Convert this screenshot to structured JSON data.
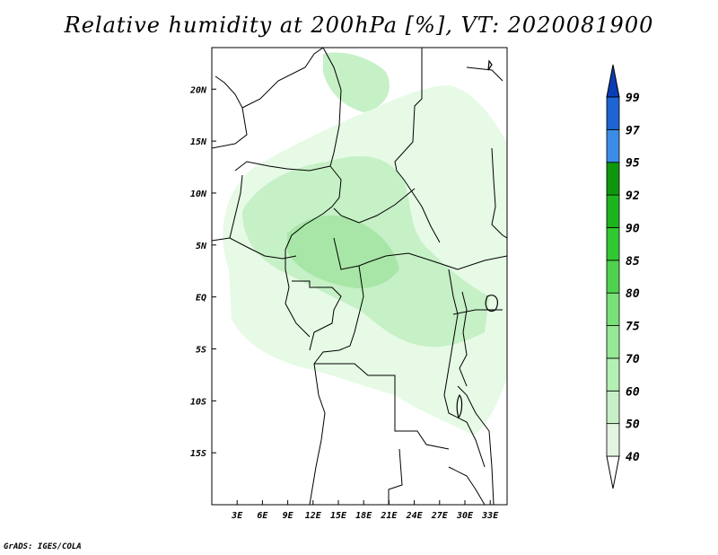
{
  "title": "Relative humidity at 200hPa [%], VT: 2020081900",
  "credit": "GrADS: IGES/COLA",
  "map": {
    "variable": "Relative humidity",
    "level": "200hPa",
    "units": "%",
    "valid_time": "2020081900",
    "lon_range": [
      0,
      35
    ],
    "lat_range": [
      -20,
      24
    ],
    "lon_ticks": [
      {
        "value": 3,
        "label": "3E"
      },
      {
        "value": 6,
        "label": "6E"
      },
      {
        "value": 9,
        "label": "9E"
      },
      {
        "value": 12,
        "label": "12E"
      },
      {
        "value": 15,
        "label": "15E"
      },
      {
        "value": 18,
        "label": "18E"
      },
      {
        "value": 21,
        "label": "21E"
      },
      {
        "value": 24,
        "label": "24E"
      },
      {
        "value": 27,
        "label": "27E"
      },
      {
        "value": 30,
        "label": "30E"
      },
      {
        "value": 33,
        "label": "33E"
      }
    ],
    "lat_ticks": [
      {
        "value": 20,
        "label": "20N"
      },
      {
        "value": 15,
        "label": "15N"
      },
      {
        "value": 10,
        "label": "10N"
      },
      {
        "value": 5,
        "label": "5N"
      },
      {
        "value": 0,
        "label": "EQ"
      },
      {
        "value": -5,
        "label": "5S"
      },
      {
        "value": -10,
        "label": "10S"
      },
      {
        "value": -15,
        "label": "15S"
      }
    ],
    "humid_region_colors": [
      "#e6fae6",
      "#c6f0c6",
      "#a8e6a8"
    ]
  },
  "colorbar": {
    "levels": [
      "40",
      "50",
      "60",
      "70",
      "75",
      "80",
      "85",
      "90",
      "92",
      "95",
      "97",
      "99"
    ],
    "colors": [
      "#f0fff0",
      "#e1f5e1",
      "#c8f0c8",
      "#b4f0b4",
      "#96e896",
      "#78e078",
      "#50d250",
      "#32c832",
      "#1eb41e",
      "#0f960f",
      "#3c8ce6",
      "#1e64d2",
      "#0a3cb4"
    ],
    "bottom_arrow_color": "#ffffff",
    "top_arrow_color": "#0a3cb4"
  }
}
